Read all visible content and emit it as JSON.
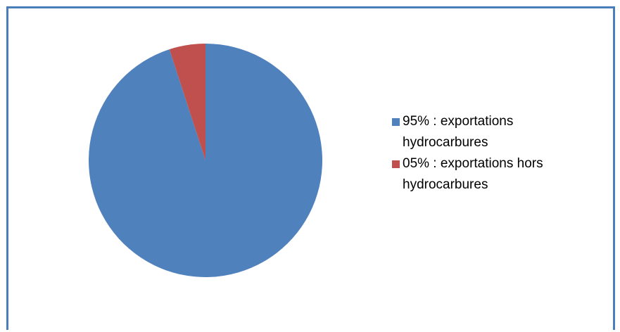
{
  "chart_data": {
    "type": "pie",
    "title": "",
    "slices": [
      {
        "label": "95% : exportations hydrocarbures",
        "value": 95,
        "color": "#4f81bd"
      },
      {
        "label": "05% : exportations hors hydrocarbures",
        "value": 5,
        "color": "#c0504d"
      }
    ],
    "legend_position": "right"
  },
  "colors": {
    "frame_border": "#4a7ebb"
  }
}
